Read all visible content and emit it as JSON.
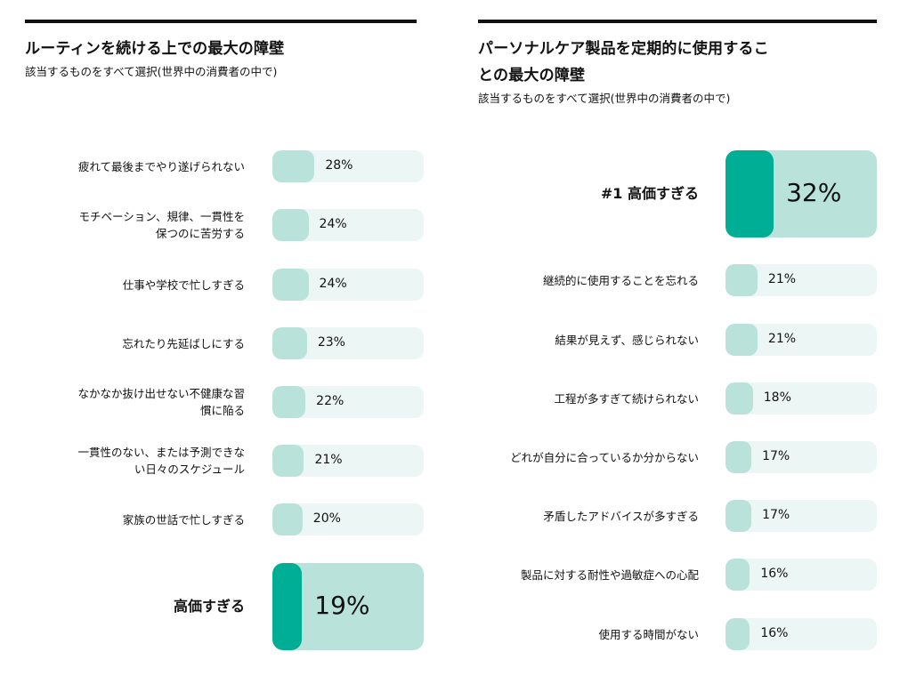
{
  "chart_data": [
    {
      "type": "bar",
      "title": "ルーティンを続ける上での最大の障壁",
      "subtitle": "該当するものをすべて選択(世界中の消費者の中で)",
      "categories": [
        "疲れて最後までやり遂げられない",
        "モチベーション、規律、一貫性を\n保つのに苦労する",
        "仕事や学校で忙しすぎる",
        "忘れたり先延ばしにする",
        "なかなか抜け出せない不健康な習\n慣に陥る",
        "一貫性のない、または予測できな\nい日々のスケジュール",
        "家族の世話で忙しすぎる",
        "高価すぎる"
      ],
      "values": [
        28,
        24,
        24,
        23,
        22,
        21,
        20,
        19
      ],
      "value_labels": [
        "28%",
        "24%",
        "24%",
        "23%",
        "22%",
        "21%",
        "20%",
        "19%"
      ],
      "highlight_index": 7,
      "xlim": [
        0,
        100
      ]
    },
    {
      "type": "bar",
      "title": "パーソナルケア製品を定期的に使用するこ\nとの最大の障壁",
      "subtitle": "該当するものをすべて選択(世界中の消費者の中で)",
      "categories": [
        "#1 高価すぎる",
        "継続的に使用することを忘れる",
        "結果が見えず、感じられない",
        "工程が多すぎて続けられない",
        "どれが自分に合っているか分からない",
        "矛盾したアドバイスが多すぎる",
        "製品に対する耐性や過敏症への心配",
        "使用する時間がない"
      ],
      "values": [
        32,
        21,
        21,
        18,
        17,
        17,
        16,
        16
      ],
      "value_labels": [
        "32%",
        "21%",
        "21%",
        "18%",
        "17%",
        "17%",
        "16%",
        "16%"
      ],
      "highlight_index": 0,
      "xlim": [
        0,
        100
      ]
    }
  ],
  "colors": {
    "track": "#ecf6f4",
    "fill": "#b9e2db",
    "highlight_track": "#b9e2db",
    "highlight_fill": "#00ad95"
  }
}
